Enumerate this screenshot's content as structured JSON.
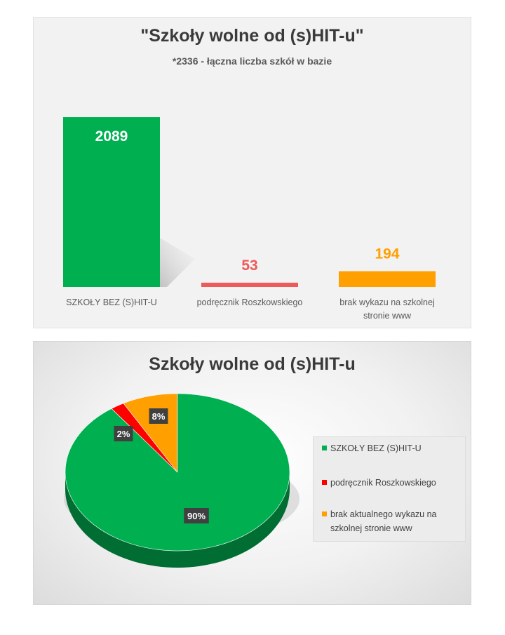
{
  "chart_data": [
    {
      "type": "bar",
      "title": "\"Szkoły wolne od (s)HIT-u\"",
      "subtitle": "*2336  - łączna liczba szkół w bazie",
      "categories": [
        "SZKOŁY BEZ (S)HIT-U",
        "podręcznik Roszkowskiego",
        "brak wykazu na szkolnej stronie www"
      ],
      "values": [
        2089,
        53,
        194
      ],
      "value_labels": [
        "2089",
        "53",
        "194"
      ],
      "colors": [
        "#00b050",
        "#ed5a5a",
        "#ff9f00"
      ],
      "label_colors": [
        "#ffffff",
        "#ed5a5a",
        "#ff9f00"
      ],
      "ylim": [
        0,
        2089
      ],
      "grid": false,
      "legend": "none"
    },
    {
      "type": "pie",
      "title": "Szkoły wolne od (s)HIT-u",
      "labels": [
        "SZKOŁY BEZ (S)HIT-U",
        "podręcznik Roszkowskiego",
        "brak aktualnego wykazu na szkolnej stronie www"
      ],
      "values": [
        90,
        2,
        8
      ],
      "value_labels": [
        "90%",
        "2%",
        "8%"
      ],
      "colors": [
        "#00b050",
        "#ff0000",
        "#ff9f00"
      ],
      "legend": "right"
    }
  ]
}
